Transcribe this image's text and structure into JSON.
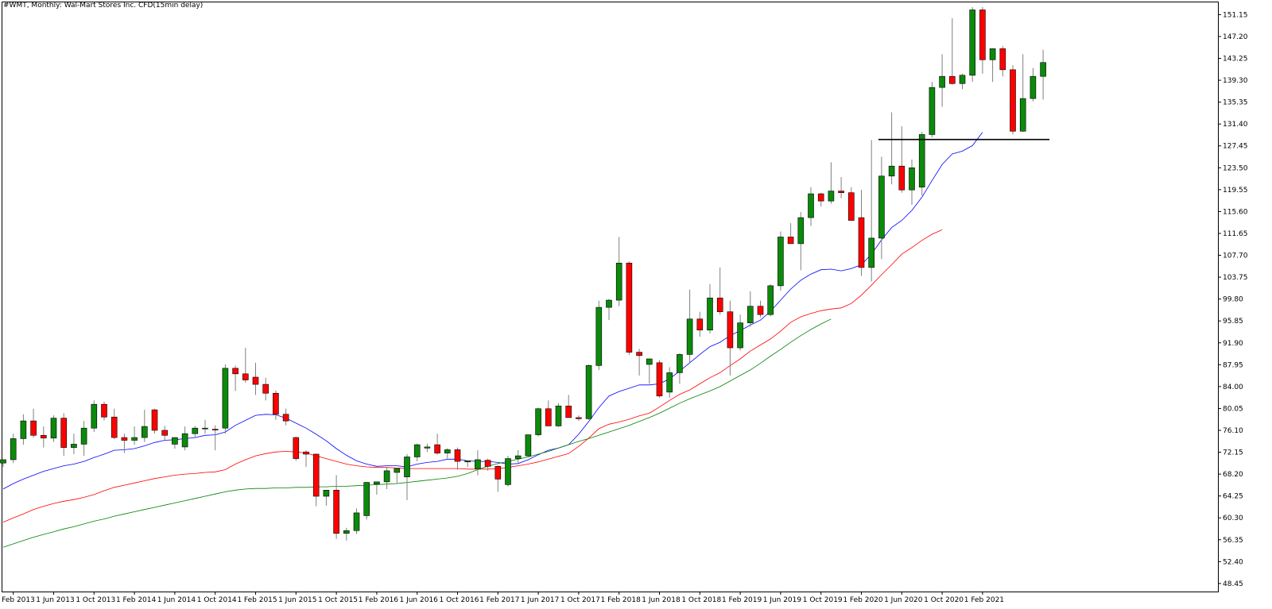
{
  "header": {
    "title": "#WMT, Monthly:  Wal-Mart Stores Inc. CFD(15min delay)"
  },
  "colors": {
    "background": "#ffffff",
    "bull_body": "#0b8a0b",
    "bear_body": "#ff0000",
    "candle_outline": "#000000",
    "wick": "#808080",
    "ma_fast": "#0000ff",
    "ma_mid": "#ff0000",
    "ma_slow": "#008000",
    "support_line": "#000000"
  },
  "chart_data": {
    "type": "candlestick",
    "timeframe": "Monthly",
    "start_month": "2013-01",
    "ylim": [
      47.0,
      153.5
    ],
    "y_ticks": [
      "151.15",
      "147.20",
      "143.25",
      "139.30",
      "135.35",
      "131.40",
      "127.45",
      "123.50",
      "119.55",
      "115.60",
      "111.65",
      "107.70",
      "103.75",
      "99.80",
      "95.85",
      "91.90",
      "87.95",
      "84.00",
      "80.05",
      "76.10",
      "72.15",
      "68.20",
      "64.25",
      "60.30",
      "56.35",
      "52.40",
      "48.45"
    ],
    "x_tick_labels": [
      "1 Feb 2013",
      "1 Jun 2013",
      "1 Oct 2013",
      "1 Feb 2014",
      "1 Jun 2014",
      "1 Oct 2014",
      "1 Feb 2015",
      "1 Jun 2015",
      "1 Oct 2015",
      "1 Feb 2016",
      "1 Jun 2016",
      "1 Oct 2016",
      "1 Feb 2017",
      "1 Jun 2017",
      "1 Oct 2017",
      "1 Feb 2018",
      "1 Jun 2018",
      "1 Oct 2018",
      "1 Feb 2019",
      "1 Jun 2019",
      "1 Oct 2019",
      "1 Feb 2020",
      "1 Jun 2020",
      "1 Oct 2020",
      "1 Feb 2021"
    ],
    "candles": [
      [
        70.2,
        70.8,
        69.5,
        70.8
      ],
      [
        70.8,
        75.5,
        70.2,
        74.6
      ],
      [
        74.6,
        79.0,
        73.5,
        77.8
      ],
      [
        77.8,
        80.0,
        74.8,
        75.2
      ],
      [
        75.2,
        76.8,
        73.0,
        74.7
      ],
      [
        74.7,
        78.8,
        74.0,
        78.3
      ],
      [
        78.3,
        79.2,
        71.5,
        73.0
      ],
      [
        73.0,
        75.5,
        71.8,
        73.6
      ],
      [
        73.6,
        77.8,
        71.5,
        76.5
      ],
      [
        76.5,
        81.5,
        75.8,
        80.8
      ],
      [
        80.8,
        81.3,
        77.9,
        78.5
      ],
      [
        78.5,
        80.0,
        74.5,
        74.8
      ],
      [
        74.8,
        75.5,
        72.0,
        74.3
      ],
      [
        74.3,
        76.8,
        73.5,
        74.8
      ],
      [
        74.8,
        79.8,
        74.0,
        76.8
      ],
      [
        79.8,
        80.0,
        75.5,
        76.1
      ],
      [
        76.1,
        76.9,
        74.4,
        75.2
      ],
      [
        73.6,
        74.8,
        72.8,
        74.8
      ],
      [
        73.1,
        76.8,
        72.5,
        75.5
      ],
      [
        75.5,
        76.9,
        74.7,
        76.5
      ],
      [
        76.5,
        78.0,
        75.5,
        76.5
      ],
      [
        76.3,
        77.0,
        72.5,
        76.2
      ],
      [
        76.5,
        88.0,
        75.5,
        87.3
      ],
      [
        87.3,
        87.8,
        83.2,
        86.3
      ],
      [
        86.3,
        91.0,
        84.7,
        85.2
      ],
      [
        85.7,
        88.3,
        82.5,
        84.4
      ],
      [
        84.4,
        85.6,
        81.5,
        82.8
      ],
      [
        82.8,
        83.3,
        78.0,
        79.0
      ],
      [
        79.0,
        80.0,
        77.0,
        77.8
      ],
      [
        74.8,
        75.0,
        70.6,
        71.0
      ],
      [
        72.2,
        72.5,
        69.5,
        71.8
      ],
      [
        71.8,
        71.9,
        62.4,
        64.2
      ],
      [
        64.2,
        65.0,
        62.5,
        65.3
      ],
      [
        65.3,
        68.0,
        56.5,
        57.5
      ],
      [
        57.5,
        58.5,
        56.2,
        58.0
      ],
      [
        58.0,
        62.0,
        57.4,
        61.2
      ],
      [
        60.7,
        66.8,
        60.0,
        66.7
      ],
      [
        66.4,
        66.8,
        64.5,
        66.8
      ],
      [
        66.8,
        69.5,
        65.5,
        68.8
      ],
      [
        68.5,
        69.0,
        66.5,
        69.2
      ],
      [
        67.7,
        71.8,
        63.5,
        71.3
      ],
      [
        71.3,
        73.7,
        70.5,
        73.5
      ],
      [
        72.9,
        73.7,
        72.2,
        73.1
      ],
      [
        73.5,
        75.5,
        71.7,
        72.0
      ],
      [
        72.0,
        72.9,
        71.0,
        72.6
      ],
      [
        72.6,
        73.0,
        69.0,
        70.5
      ],
      [
        70.4,
        70.6,
        69.5,
        70.6
      ],
      [
        69.2,
        72.5,
        68.0,
        70.8
      ],
      [
        70.7,
        71.0,
        68.8,
        69.6
      ],
      [
        69.6,
        69.8,
        65.0,
        67.3
      ],
      [
        66.3,
        71.5,
        66.0,
        71.0
      ],
      [
        71.0,
        72.5,
        70.0,
        71.5
      ],
      [
        71.5,
        75.0,
        71.3,
        75.3
      ],
      [
        75.3,
        80.2,
        75.0,
        80.0
      ],
      [
        80.0,
        81.5,
        77.9,
        76.9
      ],
      [
        76.9,
        81.0,
        76.7,
        80.5
      ],
      [
        80.5,
        82.5,
        78.6,
        78.4
      ],
      [
        78.4,
        78.8,
        77.8,
        78.2
      ],
      [
        78.2,
        88.0,
        78.0,
        87.8
      ],
      [
        87.8,
        99.5,
        87.0,
        98.3
      ],
      [
        98.3,
        99.8,
        96.0,
        99.6
      ],
      [
        99.6,
        111.0,
        98.5,
        106.3
      ],
      [
        106.3,
        106.6,
        89.7,
        90.2
      ],
      [
        90.2,
        90.8,
        86.0,
        89.6
      ],
      [
        88.0,
        89.0,
        84.5,
        89.0
      ],
      [
        88.3,
        88.8,
        82.0,
        82.3
      ],
      [
        83.0,
        87.5,
        82.0,
        86.5
      ],
      [
        86.5,
        90.0,
        84.5,
        89.8
      ],
      [
        89.8,
        101.5,
        88.3,
        96.2
      ],
      [
        96.2,
        97.5,
        93.0,
        94.2
      ],
      [
        94.2,
        102.5,
        93.6,
        100.0
      ],
      [
        100.0,
        105.5,
        97.0,
        97.5
      ],
      [
        97.5,
        99.5,
        86.0,
        91.0
      ],
      [
        91.0,
        97.0,
        90.5,
        95.5
      ],
      [
        95.5,
        101.2,
        94.8,
        98.5
      ],
      [
        98.5,
        99.5,
        96.5,
        97.0
      ],
      [
        97.0,
        102.5,
        96.7,
        102.2
      ],
      [
        102.2,
        112.0,
        101.3,
        111.0
      ],
      [
        111.0,
        113.5,
        110.0,
        109.8
      ],
      [
        109.8,
        115.5,
        105.0,
        114.5
      ],
      [
        114.5,
        120.0,
        113.0,
        118.8
      ],
      [
        118.8,
        119.0,
        116.5,
        117.5
      ],
      [
        117.5,
        124.5,
        117.0,
        119.3
      ],
      [
        119.3,
        121.8,
        118.0,
        119.0
      ],
      [
        119.0,
        120.0,
        114.5,
        114.0
      ],
      [
        114.5,
        119.5,
        104.0,
        105.5
      ],
      [
        105.5,
        128.5,
        103.0,
        110.8
      ],
      [
        110.8,
        125.5,
        107.0,
        122.0
      ],
      [
        122.0,
        133.5,
        120.5,
        123.8
      ],
      [
        123.8,
        131.0,
        119.0,
        119.5
      ],
      [
        119.5,
        125.0,
        116.8,
        123.5
      ],
      [
        120.0,
        130.0,
        118.5,
        129.5
      ],
      [
        129.5,
        139.0,
        129.0,
        138.0
      ],
      [
        138.0,
        144.0,
        134.5,
        140.0
      ],
      [
        140.0,
        150.5,
        138.5,
        138.7
      ],
      [
        138.7,
        140.5,
        137.7,
        140.2
      ],
      [
        140.2,
        152.5,
        139.0,
        152.0
      ],
      [
        152.0,
        152.5,
        140.5,
        143.0
      ],
      [
        143.0,
        144.8,
        139.0,
        145.0
      ],
      [
        145.0,
        145.5,
        140.0,
        141.2
      ],
      [
        141.2,
        142.0,
        129.5,
        130.1
      ],
      [
        130.1,
        144.0,
        130.0,
        136.0
      ],
      [
        136.0,
        141.5,
        135.5,
        140.0
      ],
      [
        140.0,
        144.8,
        135.8,
        142.5
      ]
    ],
    "moving_averages": [
      {
        "name": "MA fast",
        "color": "#0000ff",
        "values": [
          65.5,
          66.5,
          67.3,
          68.0,
          68.7,
          69.2,
          69.7,
          70.0,
          70.5,
          71.2,
          71.8,
          72.5,
          72.6,
          72.8,
          73.3,
          73.9,
          74.3,
          74.4,
          74.6,
          74.8,
          75.2,
          75.3,
          75.8,
          77.0,
          77.9,
          78.8,
          79.0,
          78.9,
          78.3,
          77.4,
          76.5,
          75.4,
          74.2,
          72.8,
          71.6,
          70.6,
          70.0,
          69.6,
          69.7,
          69.7,
          69.5,
          70.0,
          70.3,
          70.5,
          70.9,
          70.9,
          70.6,
          70.5,
          70.5,
          70.3,
          70.0,
          70.1,
          70.8,
          71.7,
          72.5,
          72.9,
          73.5,
          75.4,
          77.7,
          80.2,
          82.3,
          83.1,
          83.7,
          84.3,
          84.3,
          84.5,
          85.4,
          86.8,
          88.3,
          89.8,
          91.2,
          92.0,
          93.2,
          94.1,
          95.1,
          96.0,
          97.6,
          99.6,
          101.6,
          103.2,
          104.3,
          105.1,
          105.2,
          104.9,
          105.3,
          106.0,
          107.9,
          110.5,
          112.7,
          114.0,
          115.8,
          118.2,
          121.2,
          124.1,
          126.0,
          126.5,
          127.5,
          129.9
        ]
      },
      {
        "name": "MA mid",
        "color": "#ff0000",
        "values": [
          59.5,
          60.3,
          61.0,
          61.8,
          62.4,
          62.9,
          63.3,
          63.6,
          64.0,
          64.5,
          65.2,
          65.8,
          66.2,
          66.6,
          67.0,
          67.4,
          67.7,
          68.0,
          68.2,
          68.3,
          68.5,
          68.6,
          69.0,
          70.0,
          70.8,
          71.5,
          71.9,
          72.2,
          72.3,
          72.2,
          72.0,
          71.5,
          71.0,
          70.5,
          70.0,
          69.7,
          69.5,
          69.4,
          69.4,
          69.3,
          69.2,
          69.2,
          69.2,
          69.2,
          69.2,
          69.2,
          69.1,
          69.1,
          69.1,
          69.2,
          69.4,
          69.7,
          70.0,
          70.4,
          70.9,
          71.4,
          71.9,
          73.2,
          74.7,
          76.4,
          77.2,
          77.6,
          78.1,
          78.7,
          79.2,
          80.3,
          81.5,
          82.6,
          83.4,
          84.5,
          85.6,
          86.5,
          87.8,
          89.0,
          90.4,
          91.5,
          92.6,
          94.0,
          95.6,
          96.6,
          97.2,
          97.7,
          98.0,
          98.2,
          99.0,
          100.5,
          102.3,
          104.2,
          106.0,
          107.9,
          109.1,
          110.4,
          111.5,
          112.3
        ]
      },
      {
        "name": "MA slow",
        "color": "#008000",
        "values": [
          55.0,
          55.6,
          56.2,
          56.8,
          57.3,
          57.8,
          58.3,
          58.7,
          59.2,
          59.7,
          60.1,
          60.6,
          61.0,
          61.4,
          61.8,
          62.2,
          62.6,
          63.0,
          63.4,
          63.8,
          64.2,
          64.6,
          65.0,
          65.3,
          65.5,
          65.6,
          65.6,
          65.7,
          65.7,
          65.8,
          65.8,
          65.9,
          65.9,
          66.0,
          66.0,
          66.1,
          66.2,
          66.3,
          66.4,
          66.5,
          66.7,
          66.9,
          67.1,
          67.3,
          67.5,
          67.8,
          68.3,
          69.0,
          69.6,
          70.1,
          70.5,
          70.9,
          71.3,
          71.8,
          72.3,
          72.9,
          73.5,
          74.1,
          74.6,
          75.2,
          75.8,
          76.4,
          77.0,
          77.7,
          78.4,
          79.2,
          80.1,
          81.0,
          81.8,
          82.5,
          83.2,
          84.0,
          85.0,
          86.0,
          87.0,
          88.2,
          89.5,
          90.7,
          92.0,
          93.2,
          94.3,
          95.3,
          96.2
        ]
      }
    ],
    "horizontal_line": {
      "value": 128.6,
      "from_index": 87,
      "to_index": 103
    },
    "grid": false,
    "legend": "none"
  }
}
